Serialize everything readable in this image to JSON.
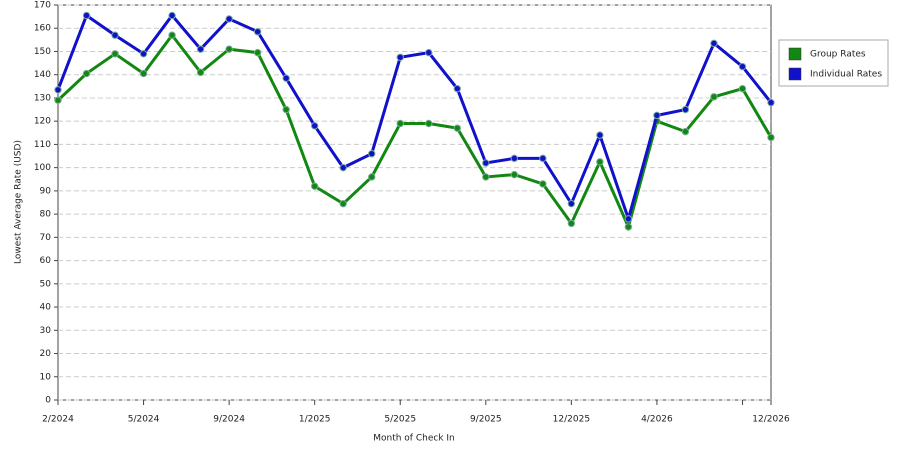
{
  "chart_data": {
    "type": "line",
    "x_label": "Month of Check In",
    "y_label": "Lowest Average Rate (USD)",
    "categories": [
      "2/2024",
      null,
      null,
      "5/2024",
      null,
      null,
      "9/2024",
      null,
      null,
      "1/2025",
      null,
      null,
      "5/2025",
      null,
      null,
      "9/2025",
      null,
      null,
      "12/2025",
      null,
      null,
      "4/2026",
      null,
      null,
      null,
      "12/2026"
    ],
    "series": [
      {
        "name": "Group Rates",
        "color": "#118811",
        "values": [
          129,
          140.5,
          149,
          140.5,
          157,
          141,
          151,
          149.5,
          125,
          92,
          84.5,
          96,
          119,
          119,
          117,
          96,
          97,
          93,
          76,
          102.5,
          74.5,
          120,
          115.5,
          130.5,
          134,
          113
        ]
      },
      {
        "name": "Individual Rates",
        "color": "#1111cc",
        "values": [
          133.5,
          165.5,
          157,
          149,
          165.5,
          151,
          164,
          158.5,
          138.5,
          118,
          100,
          106,
          147.5,
          149.5,
          134,
          102,
          104,
          104,
          84.5,
          114,
          78,
          122.5,
          125,
          153.5,
          143.5,
          128
        ]
      }
    ],
    "ylim": [
      0,
      170
    ],
    "yticks": [
      0,
      10,
      20,
      30,
      40,
      50,
      60,
      70,
      80,
      90,
      100,
      110,
      120,
      130,
      140,
      150,
      160,
      170
    ],
    "grid": true
  }
}
